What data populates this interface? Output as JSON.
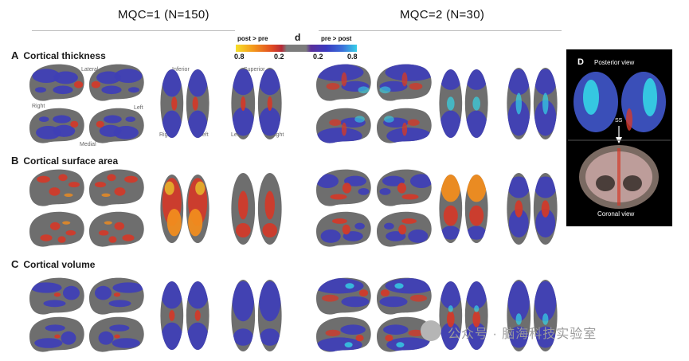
{
  "columns": {
    "left_title": "MQC=1 (N=150)",
    "right_title": "MQC=2 (N=30)"
  },
  "legend": {
    "title": "d",
    "left_label": "post > pre",
    "right_label": "pre > post",
    "ticks": [
      "0.8",
      "0.2",
      "0.2",
      "0.8"
    ]
  },
  "rows": [
    {
      "letter": "A",
      "title": "Cortical thickness"
    },
    {
      "letter": "B",
      "title": "Cortical surface area"
    },
    {
      "letter": "C",
      "title": "Cortical volume"
    }
  ],
  "view_labels": {
    "lateral": "Lateral",
    "medial": "Medial",
    "right": "Right",
    "left": "Left",
    "inferior": "Inferior",
    "superior": "Superior",
    "inf_right": "Right",
    "inf_left": "Left",
    "sup_left": "Left",
    "sup_right": "Right"
  },
  "panel_d": {
    "letter": "D",
    "top_label": "Posterior view",
    "marker": "SS",
    "bottom_label": "Coronal view"
  },
  "watermark": "公众号 · 脑海科技实验室",
  "colors": {
    "gray": "#6e6e6e",
    "blue": "#3f3fb5",
    "red": "#d03a2a",
    "orange": "#f08c1e",
    "cyan": "#35d4e6"
  }
}
